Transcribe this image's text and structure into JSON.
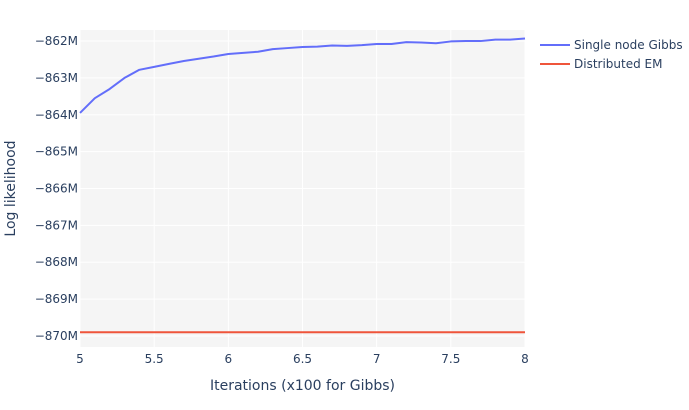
{
  "chart_data": {
    "type": "line",
    "title": "",
    "xlabel": "Iterations (x100 for Gibbs)",
    "ylabel": "Log likelihood",
    "xlim": [
      5,
      8
    ],
    "ylim": [
      -870.3,
      -861.7
    ],
    "xticks": [
      5,
      5.5,
      6,
      6.5,
      7,
      7.5,
      8
    ],
    "xtick_labels": [
      "5",
      "5.5",
      "6",
      "6.5",
      "7",
      "7.5",
      "8"
    ],
    "yticks": [
      -862,
      -863,
      -864,
      -865,
      -866,
      -867,
      -868,
      -869,
      -870
    ],
    "ytick_labels": [
      "−862M",
      "−863M",
      "−864M",
      "−865M",
      "−866M",
      "−867M",
      "−868M",
      "−869M",
      "−870M"
    ],
    "grid": true,
    "legend_position": "top-right",
    "series": [
      {
        "name": "Single node Gibbs",
        "color": "#636efa",
        "x": [
          5,
          5.1,
          5.2,
          5.3,
          5.4,
          5.5,
          5.6,
          5.7,
          5.8,
          5.9,
          6,
          6.1,
          6.2,
          6.3,
          6.4,
          6.5,
          6.6,
          6.7,
          6.8,
          6.9,
          7,
          7.1,
          7.2,
          7.3,
          7.4,
          7.5,
          7.6,
          7.7,
          7.8,
          7.9,
          8
        ],
        "y": [
          -863.95,
          -863.55,
          -863.3,
          -863.0,
          -862.78,
          -862.7,
          -862.62,
          -862.54,
          -862.48,
          -862.42,
          -862.35,
          -862.32,
          -862.29,
          -862.22,
          -862.19,
          -862.16,
          -862.15,
          -862.12,
          -862.13,
          -862.11,
          -862.08,
          -862.08,
          -862.03,
          -862.04,
          -862.06,
          -862.01,
          -862.0,
          -862.0,
          -861.96,
          -861.96,
          -861.93
        ]
      },
      {
        "name": "Distributed EM",
        "color": "#ef553b",
        "x": [
          5,
          8
        ],
        "y": [
          -869.9,
          -869.9
        ]
      }
    ]
  }
}
